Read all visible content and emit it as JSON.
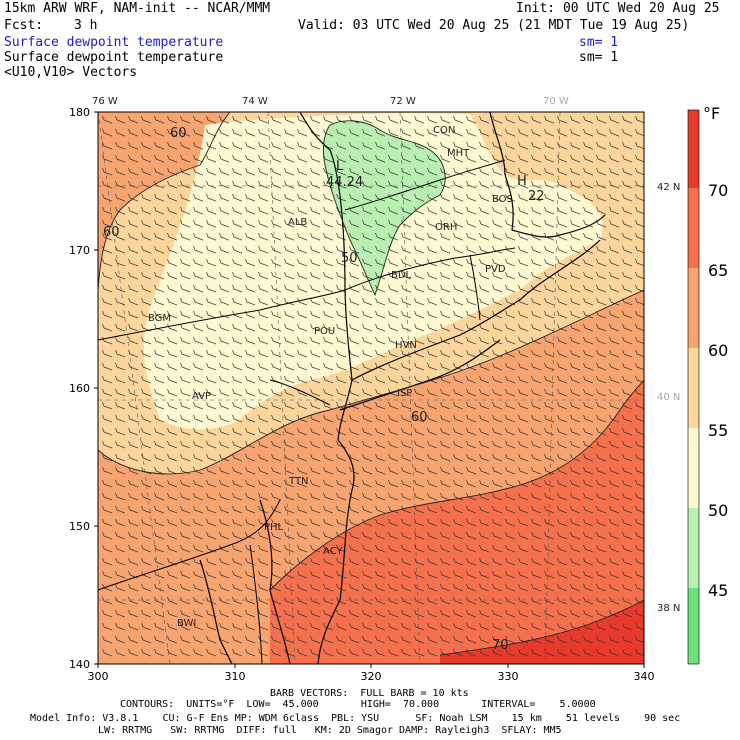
{
  "header": {
    "model": "15km ARW WRF, NAM-init -- NCAR/MMM",
    "init": "Init: 00 UTC Wed 20 Aug 25",
    "fcst_label": "Fcst:",
    "fcst_value": "3 h",
    "valid": "Valid: 03 UTC Wed 20 Aug 25 (21 MDT Tue 19 Aug 25)",
    "field1": "Surface dewpoint temperature",
    "field1_sm": "sm= 1",
    "field2": "Surface dewpoint temperature",
    "field2_sm": "sm= 1",
    "field3": "<U10,V10> Vectors"
  },
  "map": {
    "lon_labels": [
      "76 W",
      "74 W",
      "72 W",
      "70 W"
    ],
    "lat_labels": [
      "42 N",
      "40 N",
      "38 N"
    ],
    "x_ticks": [
      "300",
      "310",
      "320",
      "330",
      "340"
    ],
    "y_ticks": [
      "180",
      "170",
      "160",
      "150",
      "140"
    ],
    "stations": [
      "CON",
      "MHT",
      "BOS",
      "ALB",
      "ORH",
      "PVD",
      "BDL",
      "BGM",
      "POU",
      "HVN",
      "AVP",
      "ISP",
      "TTN",
      "PHL",
      "ACY",
      "BWI"
    ],
    "contour_labels": [
      "60",
      "60",
      "50",
      "60",
      "70",
      "22"
    ],
    "extremes": {
      "low_marker": "L",
      "low_value": "44.24",
      "high_marker": "H"
    }
  },
  "colorbar": {
    "unit": "°F",
    "labels": [
      "70",
      "65",
      "60",
      "55",
      "50",
      "45"
    ],
    "colors": [
      "#e83a2c",
      "#f5704c",
      "#f7a470",
      "#fbd59c",
      "#fcf8d2",
      "#b9f0b2",
      "#6ee27a"
    ]
  },
  "footer": {
    "barb": "BARB VECTORS:  FULL BARB = 10 kts",
    "contours": "CONTOURS:  UNITS=°F  LOW=  45.000       HIGH=  70.000       INTERVAL=    5.0000",
    "model_info": "Model Info: V3.8.1    CU: G-F Ens MP: WDM 6class  PBL: YSU      SF: Noah LSM    15 km    51 levels    90 sec",
    "model_info2": "LW: RRTMG   SW: RRTMG  DIFF: full   KM: 2D Smagor DAMP: Rayleigh3  SFLAY: MM5"
  }
}
